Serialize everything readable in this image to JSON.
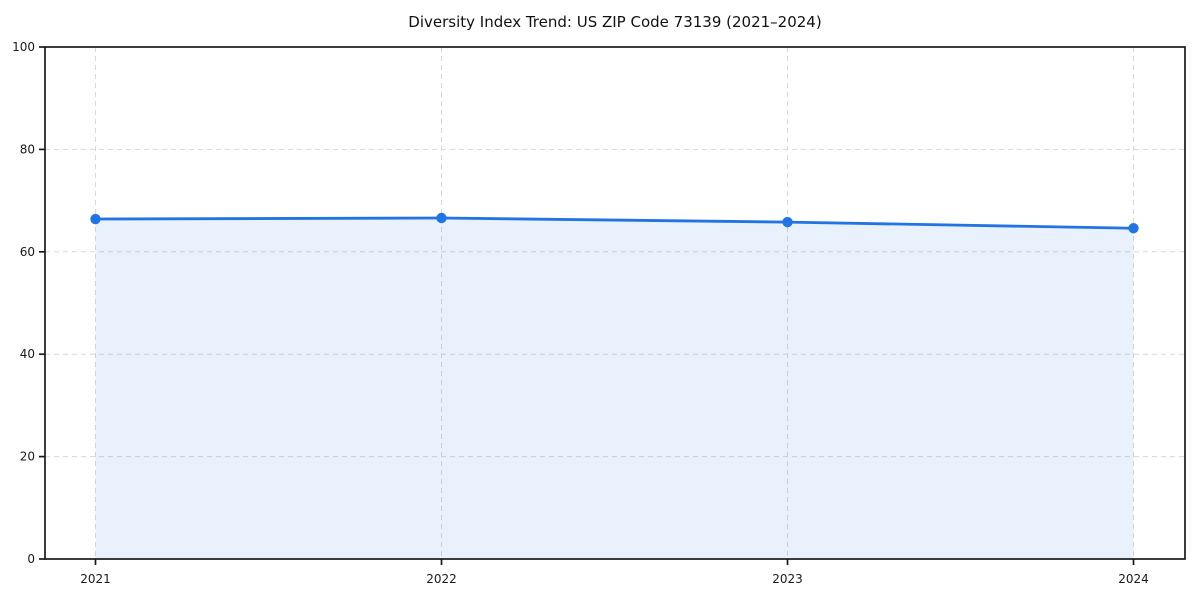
{
  "chart_data": {
    "type": "area",
    "title": "Diversity Index Trend: US ZIP Code 73139 (2021–2024)",
    "categories": [
      "2021",
      "2022",
      "2023",
      "2024"
    ],
    "x": [
      2021,
      2022,
      2023,
      2024
    ],
    "series": [
      {
        "name": "Diversity Index",
        "values": [
          66.4,
          66.6,
          65.8,
          64.6
        ]
      }
    ],
    "xlabel": "",
    "ylabel": "",
    "ylim": [
      0,
      100
    ],
    "yticks": [
      0,
      20,
      40,
      60,
      80,
      100
    ],
    "grid": "on",
    "grid_style": "dashed",
    "legend_position": "none",
    "colors": {
      "line": "#2274e2",
      "marker": "#2274e2",
      "fill": "#2274e2",
      "fill_opacity": 0.1,
      "grid": "#d8d8d8",
      "spine": "#1a1a1a",
      "tick_text": "#1a1a1a",
      "title_text": "#111111",
      "background": "#ffffff"
    }
  }
}
